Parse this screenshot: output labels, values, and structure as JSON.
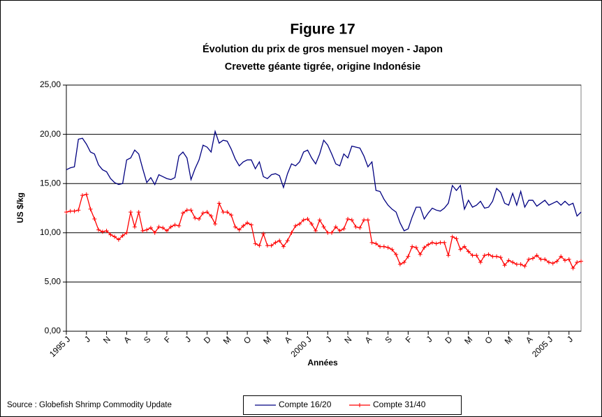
{
  "chart_data": {
    "type": "line",
    "title": "Figure 17",
    "subtitle": [
      "Évolution du prix de gros mensuel moyen - Japon",
      "Crevette géante tigrée, origine Indonésie"
    ],
    "y_label": "US $/kg",
    "x_label": "Années",
    "source": "Source : Globefish Shrimp Commodity Update",
    "ylim": [
      0,
      25
    ],
    "yticks": [
      {
        "value": 0,
        "label": "0,00"
      },
      {
        "value": 5,
        "label": "5,00"
      },
      {
        "value": 10,
        "label": "10,00"
      },
      {
        "value": 15,
        "label": "15,00"
      },
      {
        "value": 20,
        "label": "20,00"
      },
      {
        "value": 25,
        "label": "25,00"
      }
    ],
    "grid": true,
    "legend": "bottom",
    "categories": [
      "1995 J",
      null,
      null,
      null,
      null,
      "J",
      null,
      null,
      null,
      null,
      "N",
      null,
      null,
      null,
      null,
      "A",
      null,
      null,
      null,
      null,
      "S",
      null,
      null,
      null,
      null,
      "F",
      null,
      null,
      null,
      null,
      "J",
      null,
      null,
      null,
      null,
      "D",
      null,
      null,
      null,
      null,
      "M",
      null,
      null,
      null,
      null,
      "O",
      null,
      null,
      null,
      null,
      "M",
      null,
      null,
      null,
      null,
      "A",
      null,
      null,
      null,
      null,
      "2000 J",
      null,
      null,
      null,
      null,
      "J",
      null,
      null,
      null,
      null,
      "N",
      null,
      null,
      null,
      null,
      "A",
      null,
      null,
      null,
      null,
      "S",
      null,
      null,
      null,
      null,
      "F",
      null,
      null,
      null,
      null,
      "J",
      null,
      null,
      null,
      null,
      "D",
      null,
      null,
      null,
      null,
      "M",
      null,
      null,
      null,
      null,
      "O",
      null,
      null,
      null,
      null,
      "M",
      null,
      null,
      null,
      null,
      "A",
      null,
      null,
      null,
      null,
      "2005 J",
      null,
      null,
      null,
      null,
      "J",
      null,
      null,
      null
    ],
    "series": [
      {
        "name": "Compte 16/20",
        "color": "#000080",
        "marker": "none",
        "values": [
          16.4,
          16.6,
          16.7,
          19.5,
          19.6,
          19.0,
          18.2,
          18.0,
          16.9,
          16.4,
          16.2,
          15.5,
          15.1,
          14.9,
          15.0,
          17.4,
          17.6,
          18.4,
          18.0,
          16.5,
          15.1,
          15.6,
          14.9,
          15.9,
          15.7,
          15.5,
          15.4,
          15.6,
          17.8,
          18.2,
          17.6,
          15.4,
          16.5,
          17.4,
          18.9,
          18.7,
          18.2,
          20.3,
          19.1,
          19.4,
          19.3,
          18.5,
          17.5,
          16.8,
          17.2,
          17.4,
          17.4,
          16.5,
          17.2,
          15.7,
          15.5,
          15.9,
          16.0,
          15.8,
          14.6,
          16.0,
          17.0,
          16.8,
          17.2,
          18.2,
          18.4,
          17.6,
          17.0,
          18.0,
          19.4,
          18.9,
          18.0,
          17.0,
          16.8,
          18.0,
          17.6,
          18.8,
          18.7,
          18.6,
          17.8,
          16.7,
          17.2,
          14.3,
          14.2,
          13.4,
          12.8,
          12.4,
          12.1,
          11.0,
          10.2,
          10.4,
          11.6,
          12.6,
          12.6,
          11.4,
          12.0,
          12.5,
          12.3,
          12.2,
          12.5,
          13.0,
          14.8,
          14.3,
          14.8,
          12.4,
          13.3,
          12.6,
          12.8,
          13.2,
          12.5,
          12.6,
          13.2,
          14.5,
          14.1,
          13.0,
          12.8,
          14.0,
          12.8,
          14.2,
          12.6,
          13.3,
          13.3,
          12.7,
          13.0,
          13.3,
          12.8,
          13.0,
          13.2,
          12.8,
          13.2,
          12.8,
          13.0,
          11.7,
          12.1
        ]
      },
      {
        "name": "Compte 31/40",
        "color": "#ff0000",
        "marker": "plus",
        "values": [
          12.1,
          12.2,
          12.2,
          12.3,
          13.8,
          13.9,
          12.4,
          11.4,
          10.3,
          10.1,
          10.2,
          9.8,
          9.6,
          9.3,
          9.7,
          10.0,
          12.1,
          10.6,
          12.1,
          10.2,
          10.3,
          10.5,
          10.0,
          10.6,
          10.5,
          10.2,
          10.6,
          10.8,
          10.7,
          12.0,
          12.3,
          12.3,
          11.5,
          11.4,
          12.0,
          12.1,
          11.7,
          10.9,
          13.0,
          12.1,
          12.1,
          11.8,
          10.6,
          10.3,
          10.7,
          11.0,
          10.8,
          8.9,
          8.7,
          9.9,
          8.7,
          8.7,
          9.0,
          9.2,
          8.6,
          9.2,
          10.0,
          10.7,
          10.9,
          11.3,
          11.4,
          10.9,
          10.2,
          11.3,
          10.6,
          10.0,
          10.0,
          10.6,
          10.2,
          10.4,
          11.4,
          11.3,
          10.6,
          10.5,
          11.3,
          11.3,
          9.0,
          8.9,
          8.6,
          8.6,
          8.5,
          8.3,
          7.8,
          6.8,
          7.0,
          7.6,
          8.6,
          8.5,
          7.8,
          8.5,
          8.8,
          9.0,
          8.9,
          9.0,
          9.0,
          7.7,
          9.6,
          9.4,
          8.3,
          8.6,
          8.1,
          7.7,
          7.7,
          7.0,
          7.7,
          7.8,
          7.6,
          7.6,
          7.5,
          6.7,
          7.2,
          7.0,
          6.8,
          6.8,
          6.6,
          7.3,
          7.4,
          7.7,
          7.3,
          7.3,
          7.0,
          6.9,
          7.1,
          7.6,
          7.2,
          7.3,
          6.4,
          7.0,
          7.1
        ]
      }
    ]
  }
}
